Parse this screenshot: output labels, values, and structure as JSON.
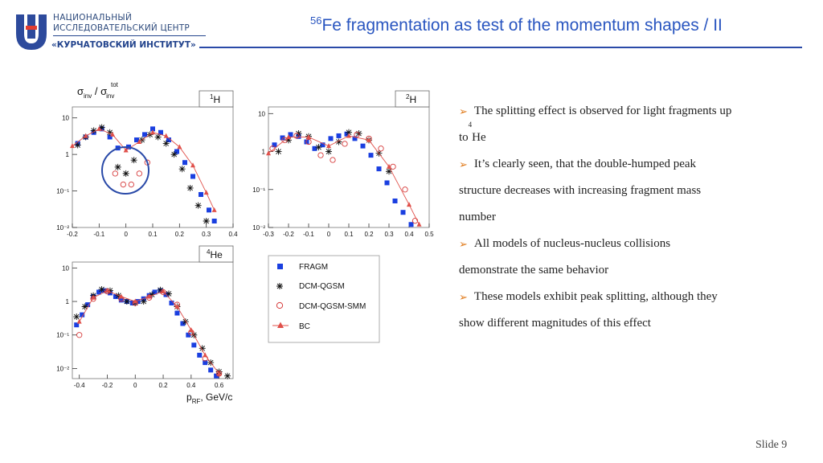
{
  "logo": {
    "line1": "НАЦИОНАЛЬНЫЙ",
    "line2": "ИССЛЕДОВАТЕЛЬСКИЙ ЦЕНТР",
    "line3": "«КУРЧАТОВСКИЙ ИНСТИТУТ»",
    "color": "#23448d"
  },
  "title": {
    "sup": "56",
    "text": "Fe fragmentation as test of the momentum shapes / II",
    "color": "#2a56c0"
  },
  "figure": {
    "ylabel_main": "σ",
    "ylabel_sub1": "inv",
    "ylabel_sep": " / ",
    "ylabel_main2": "σ",
    "ylabel_sub2": "inv",
    "ylabel_sup2": "tot",
    "xlabel_main": "p",
    "xlabel_sub": "RF",
    "xlabel_unit": ", GeV/c",
    "panel1_label_sup": "1",
    "panel1_label": "H",
    "panel2_label_sup": "2",
    "panel2_label": "H",
    "panel3_label_sup": "4",
    "panel3_label": "He"
  },
  "legend": {
    "entries": [
      "FRAGM",
      "DCM-QGSM",
      "DCM-QGSM-SMM",
      "BC"
    ]
  },
  "chart_data": [
    {
      "type": "scatter",
      "panel_label": "1H",
      "xlim": [
        -0.2,
        0.4
      ],
      "y_scale": "log",
      "ylim": [
        0.01,
        20
      ],
      "x_ticks": [
        "-0.2",
        "-0.1",
        "0",
        "0.1",
        "0.2",
        "0.3",
        "0.4"
      ],
      "y_ticks": [
        "10",
        "1",
        "10⁻¹",
        "10⁻²"
      ],
      "series": [
        {
          "name": "FRAGM",
          "x": [
            -0.18,
            -0.15,
            -0.12,
            -0.09,
            -0.06,
            -0.03,
            0.01,
            0.04,
            0.07,
            0.1,
            0.13,
            0.16,
            0.19,
            0.22,
            0.25,
            0.28,
            0.31,
            0.33
          ],
          "y": [
            2,
            3,
            4,
            5,
            3,
            1.5,
            1.6,
            2.5,
            3.5,
            5,
            4,
            2.5,
            1.2,
            0.6,
            0.25,
            0.08,
            0.03,
            0.015
          ]
        },
        {
          "name": "DCM-QGSM",
          "x": [
            -0.18,
            -0.15,
            -0.12,
            -0.09,
            -0.06,
            -0.03,
            0,
            0.03,
            0.06,
            0.09,
            0.12,
            0.15,
            0.18,
            0.21,
            0.24,
            0.27,
            0.3
          ],
          "y": [
            1.8,
            3,
            4.5,
            5.5,
            4,
            0.45,
            0.3,
            0.7,
            2.5,
            3.5,
            3,
            2,
            1,
            0.4,
            0.12,
            0.04,
            0.015
          ]
        },
        {
          "name": "DCM-QGSM-SMM",
          "x": [
            -0.04,
            -0.01,
            0.02,
            0.05,
            0.08
          ],
          "y": [
            0.3,
            0.15,
            0.15,
            0.3,
            0.6
          ]
        },
        {
          "name": "BC",
          "x": [
            -0.2,
            -0.15,
            -0.1,
            -0.05,
            0,
            0.05,
            0.1,
            0.15,
            0.2,
            0.25,
            0.3,
            0.33
          ],
          "y": [
            1.7,
            3.2,
            5,
            3.5,
            1.3,
            2.2,
            4,
            3.2,
            1.6,
            0.5,
            0.09,
            0.03
          ]
        }
      ]
    },
    {
      "type": "scatter",
      "panel_label": "2H",
      "xlim": [
        -0.3,
        0.5
      ],
      "y_scale": "log",
      "ylim": [
        0.01,
        15
      ],
      "x_ticks": [
        "-0.3",
        "-0.2",
        "-0.1",
        "0",
        "0.1",
        "0.2",
        "0.3",
        "0.4",
        "0.5"
      ],
      "y_ticks": [
        "10",
        "1",
        "10⁻¹",
        "10⁻²"
      ],
      "series": [
        {
          "name": "FRAGM",
          "x": [
            -0.27,
            -0.23,
            -0.19,
            -0.15,
            -0.11,
            -0.07,
            -0.03,
            0.01,
            0.05,
            0.09,
            0.13,
            0.17,
            0.21,
            0.25,
            0.29,
            0.33,
            0.37,
            0.41
          ],
          "y": [
            1.5,
            2.3,
            2.8,
            2.5,
            1.8,
            1.2,
            1.5,
            2.2,
            2.6,
            2.9,
            2.2,
            1.4,
            0.8,
            0.35,
            0.15,
            0.05,
            0.025,
            0.012
          ]
        },
        {
          "name": "DCM-QGSM",
          "x": [
            -0.25,
            -0.2,
            -0.15,
            -0.1,
            -0.05,
            0,
            0.05,
            0.1,
            0.15,
            0.2,
            0.25,
            0.3
          ],
          "y": [
            1,
            2,
            3,
            2.5,
            1.3,
            1,
            1.8,
            3.2,
            3,
            2,
            0.9,
            0.3
          ]
        },
        {
          "name": "DCM-QGSM-SMM",
          "x": [
            -0.28,
            -0.22,
            -0.16,
            -0.1,
            -0.04,
            0.02,
            0.08,
            0.14,
            0.2,
            0.26,
            0.32,
            0.38,
            0.43
          ],
          "y": [
            1.2,
            2,
            2.6,
            1.8,
            0.8,
            0.6,
            1.6,
            2.8,
            2.2,
            1.2,
            0.4,
            0.1,
            0.015
          ]
        },
        {
          "name": "BC",
          "x": [
            -0.3,
            -0.2,
            -0.1,
            0,
            0.1,
            0.2,
            0.3,
            0.4,
            0.45
          ],
          "y": [
            0.9,
            2.4,
            2.4,
            1.4,
            2.6,
            2,
            0.4,
            0.04,
            0.012
          ]
        }
      ]
    },
    {
      "type": "scatter",
      "panel_label": "4He",
      "xlim": [
        -0.45,
        0.7
      ],
      "y_scale": "log",
      "ylim": [
        0.005,
        15
      ],
      "x_ticks": [
        "-0.4",
        "-0.2",
        "0",
        "0.2",
        "0.4",
        "0.6"
      ],
      "y_ticks": [
        "10",
        "1",
        "10⁻¹",
        "10⁻²"
      ],
      "series": [
        {
          "name": "FRAGM",
          "x": [
            -0.42,
            -0.38,
            -0.34,
            -0.3,
            -0.26,
            -0.22,
            -0.18,
            -0.14,
            -0.1,
            -0.06,
            -0.02,
            0.02,
            0.06,
            0.1,
            0.14,
            0.18,
            0.22,
            0.26,
            0.3,
            0.34,
            0.38,
            0.42,
            0.46,
            0.5,
            0.54,
            0.58
          ],
          "y": [
            0.2,
            0.4,
            0.8,
            1.4,
            1.9,
            2.1,
            1.8,
            1.4,
            1.1,
            1,
            0.9,
            1,
            1.2,
            1.5,
            1.9,
            2.1,
            1.6,
            0.9,
            0.45,
            0.22,
            0.1,
            0.05,
            0.025,
            0.015,
            0.009,
            0.006
          ]
        },
        {
          "name": "DCM-QGSM",
          "x": [
            -0.42,
            -0.36,
            -0.3,
            -0.24,
            -0.18,
            -0.12,
            -0.06,
            0,
            0.06,
            0.12,
            0.18,
            0.24,
            0.3,
            0.36,
            0.42,
            0.48,
            0.54,
            0.6,
            0.66
          ],
          "y": [
            0.35,
            0.7,
            1.5,
            2.3,
            2.1,
            1.5,
            1,
            0.9,
            1,
            1.6,
            2.2,
            1.7,
            0.7,
            0.25,
            0.1,
            0.04,
            0.015,
            0.008,
            0.006
          ]
        },
        {
          "name": "DCM-QGSM-SMM",
          "x": [
            -0.4,
            -0.3,
            -0.2,
            -0.1,
            0,
            0.1,
            0.2,
            0.3,
            0.4,
            0.5,
            0.6
          ],
          "y": [
            0.1,
            1.2,
            2,
            1.2,
            0.9,
            1.3,
            1.9,
            0.8,
            0.12,
            0.02,
            0.007
          ]
        },
        {
          "name": "BC",
          "x": [
            -0.4,
            -0.3,
            -0.2,
            -0.1,
            0,
            0.1,
            0.2,
            0.3,
            0.4,
            0.5,
            0.6
          ],
          "y": [
            0.25,
            1.3,
            2.1,
            1.4,
            1,
            1.4,
            2,
            0.7,
            0.14,
            0.025,
            0.007
          ]
        }
      ]
    }
  ],
  "bullets": [
    {
      "pre": "The splitting effect is observed for light fragments up"
    },
    {
      "pre": "to ",
      "sup": "4",
      "post": "He"
    },
    {
      "pre": "It’s clearly seen, that the double-humped peak"
    },
    {
      "pre": "structure decreases with increasing fragment mass"
    },
    {
      "pre": "number"
    },
    {
      "pre": "All models of nucleus-nucleus collisions"
    },
    {
      "pre": "demonstrate the same behavior"
    },
    {
      "pre": "These models exhibit peak splitting, although they"
    },
    {
      "pre": "show different magnitudes of this effect"
    }
  ],
  "slide_number": "Slide 9",
  "colors": {
    "fragm": "#1a3fe0",
    "dcm": "#111111",
    "smm": "#d63a3a",
    "bc": "#e0504a",
    "accent": "#e07a1a"
  }
}
